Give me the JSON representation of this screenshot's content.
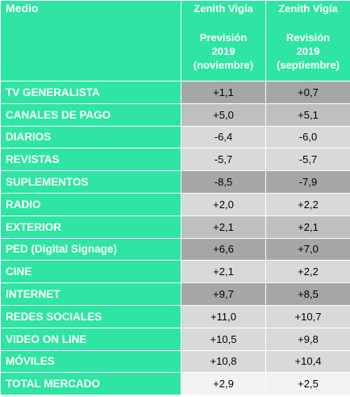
{
  "header": {
    "medio": "Medio",
    "col1": {
      "line1": "Zenith Vigía",
      "line2": "Previsión",
      "line3": "2019",
      "line4": "(noviembre)"
    },
    "col2": {
      "line1": "Zenith Vigía",
      "line2": "Revisión",
      "line3": "2019",
      "line4": "(septiembre)"
    }
  },
  "colors": {
    "green": "#2ee5a1",
    "dark_grey": "#a6a6a6",
    "light_grey": "#d9d9d9",
    "lightest_grey": "#f2f2f2"
  },
  "rows": [
    {
      "label": "TV GENERALISTA",
      "prevision": "+1,1",
      "revision": "+0,7",
      "shade": "#a6a6a6"
    },
    {
      "label": "CANALES DE PAGO",
      "prevision": "+5,0",
      "revision": "+5,1",
      "shade": "#bfbfbf"
    },
    {
      "label": "DIARIOS",
      "prevision": "-6,4",
      "revision": "-6,0",
      "shade": "#d9d9d9"
    },
    {
      "label": "REVISTAS",
      "prevision": "-5,7",
      "revision": "-5,7",
      "shade": "#d9d9d9"
    },
    {
      "label": "SUPLEMENTOS",
      "prevision": "-8,5",
      "revision": "-7,9",
      "shade": "#a6a6a6"
    },
    {
      "label": "RADIO",
      "prevision": "+2,0",
      "revision": "+2,2",
      "shade": "#d9d9d9"
    },
    {
      "label": "EXTERIOR",
      "prevision": "+2,1",
      "revision": "+2,1",
      "shade": "#bfbfbf"
    },
    {
      "label": "PED (Digital Signage)",
      "prevision": "+6,6",
      "revision": "+7,0",
      "shade": "#a6a6a6"
    },
    {
      "label": "CINE",
      "prevision": "+2,1",
      "revision": "+2,2",
      "shade": "#d9d9d9"
    },
    {
      "label": "INTERNET",
      "prevision": "+9,7",
      "revision": "+8,5",
      "shade": "#a6a6a6"
    },
    {
      "label": "REDES SOCIALES",
      "prevision": "+11,0",
      "revision": "+10,7",
      "shade": "#d9d9d9"
    },
    {
      "label": "VIDEO ON LINE",
      "prevision": "+10,5",
      "revision": "+9,8",
      "shade": "#d9d9d9"
    },
    {
      "label": "MÓVILES",
      "prevision": "+10,8",
      "revision": "+10,4",
      "shade": "#d9d9d9"
    },
    {
      "label": "TOTAL MERCADO",
      "prevision": "+2,9",
      "revision": "+2,5",
      "shade": "#f2f2f2"
    }
  ]
}
